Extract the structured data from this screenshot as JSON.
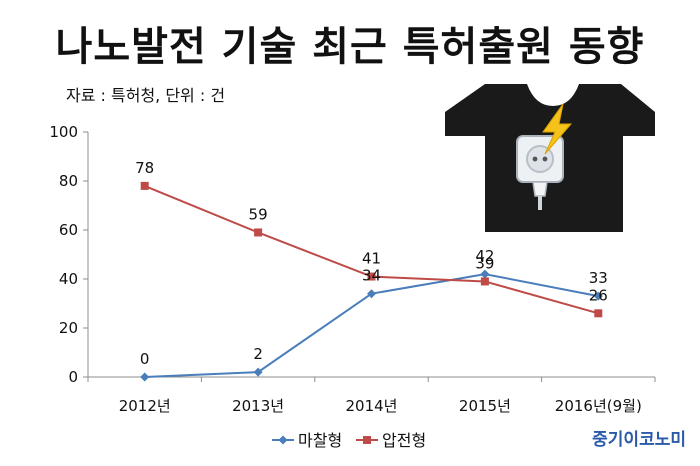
{
  "title": "나노발전 기술 최근 특허출원 동향",
  "source": "자료 : 특허청, 단위 : 건",
  "brand": "중기이코노미",
  "chart_data": {
    "type": "line",
    "categories": [
      "2012년",
      "2013년",
      "2014년",
      "2015년",
      "2016년(9월)"
    ],
    "series": [
      {
        "name": "마찰형",
        "values": [
          0,
          2,
          34,
          42,
          33
        ],
        "color": "#4a7ebb",
        "marker": "diamond"
      },
      {
        "name": "압전형",
        "values": [
          78,
          59,
          41,
          39,
          26
        ],
        "color": "#be4b48",
        "marker": "square"
      }
    ],
    "ylim": [
      0,
      100
    ],
    "yticks": [
      0,
      20,
      40,
      60,
      80,
      100
    ],
    "grid": false,
    "legend_position": "bottom"
  },
  "illustration": {
    "icon": "tshirt-with-power-plug-icon",
    "shirt_color": "#1a1a1a",
    "bolt_color": "#f5c21b"
  }
}
